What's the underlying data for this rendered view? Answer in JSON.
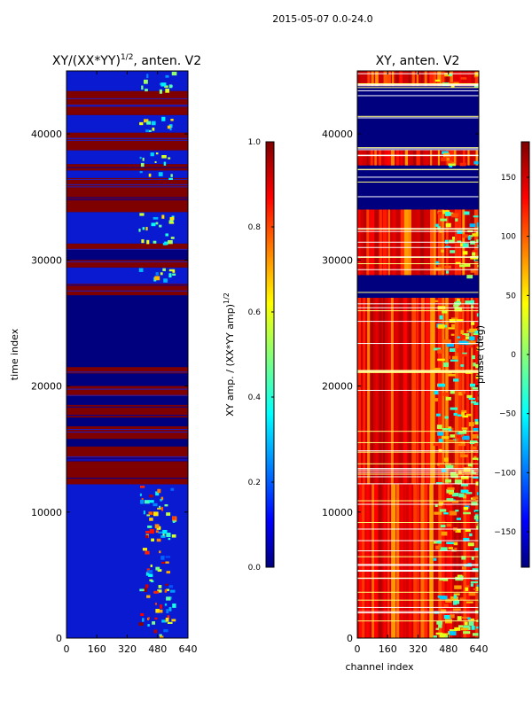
{
  "figure": {
    "suptitle": "2015-05-07 0.0-24.0"
  },
  "chart_data": [
    {
      "type": "heatmap",
      "title_main": "XY/(XX*YY)",
      "title_sup": "1/2",
      "title_tail": ", anten. V2",
      "xlabel": "",
      "ylabel": "time index",
      "xlim": [
        0,
        640
      ],
      "ylim": [
        0,
        45000
      ],
      "x_ticks": [
        0,
        160,
        320,
        480,
        640
      ],
      "y_ticks": [
        0,
        10000,
        20000,
        30000,
        40000
      ],
      "x_tick_labels": [
        "0",
        "160",
        "320",
        "480",
        "640"
      ],
      "y_tick_labels": [
        "0",
        "10000",
        "20000",
        "30000",
        "40000"
      ],
      "colormap": "jet",
      "colorbar": {
        "label_main": "XY amp. / (XX*YY amp)",
        "label_sup": "1/2",
        "range": [
          0.0,
          1.0
        ],
        "ticks": [
          0.0,
          0.2,
          0.4,
          0.6,
          0.8,
          1.0
        ],
        "tick_labels": [
          "0.0",
          "0.2",
          "0.4",
          "0.6",
          "0.8",
          "1.0"
        ]
      },
      "high_value_bands": [
        [
          12200,
          15200
        ],
        [
          15800,
          16800
        ],
        [
          17500,
          18500
        ],
        [
          19200,
          20000
        ],
        [
          21000,
          21500
        ],
        [
          27200,
          28100
        ],
        [
          29400,
          30000
        ],
        [
          30800,
          31300
        ],
        [
          33800,
          36500
        ],
        [
          37100,
          37600
        ],
        [
          38700,
          40100
        ],
        [
          41500,
          43400
        ]
      ],
      "low_value_bands": [
        [
          0,
          12200
        ],
        [
          28100,
          29400
        ],
        [
          31300,
          33800
        ],
        [
          36500,
          37100
        ],
        [
          37600,
          38700
        ],
        [
          40100,
          41500
        ],
        [
          43400,
          45000
        ]
      ]
    },
    {
      "type": "heatmap",
      "title_main": "XY, anten. V2",
      "xlabel": "channel index",
      "ylabel": "",
      "xlim": [
        0,
        640
      ],
      "ylim": [
        0,
        45000
      ],
      "x_ticks": [
        0,
        160,
        320,
        480,
        640
      ],
      "y_ticks": [
        0,
        10000,
        20000,
        30000,
        40000
      ],
      "x_tick_labels": [
        "0",
        "160",
        "320",
        "480",
        "640"
      ],
      "y_tick_labels": [
        "0",
        "10000",
        "20000",
        "30000",
        "40000"
      ],
      "colormap": "jet",
      "colorbar": {
        "label_main": "phase (deg)",
        "range": [
          -180,
          180
        ],
        "ticks": [
          -150,
          -100,
          -50,
          0,
          50,
          100,
          150
        ],
        "tick_labels": [
          "−150",
          "−100",
          "−50",
          "0",
          "50",
          "100",
          "150"
        ]
      },
      "phase_bands": [
        [
          0,
          12200
        ],
        [
          12200,
          27000
        ],
        [
          28800,
          34000
        ],
        [
          37500,
          38700
        ],
        [
          43800,
          45000
        ]
      ],
      "masked_bands": [
        [
          27000,
          28800
        ],
        [
          34000,
          37500
        ],
        [
          38700,
          43800
        ]
      ]
    }
  ]
}
